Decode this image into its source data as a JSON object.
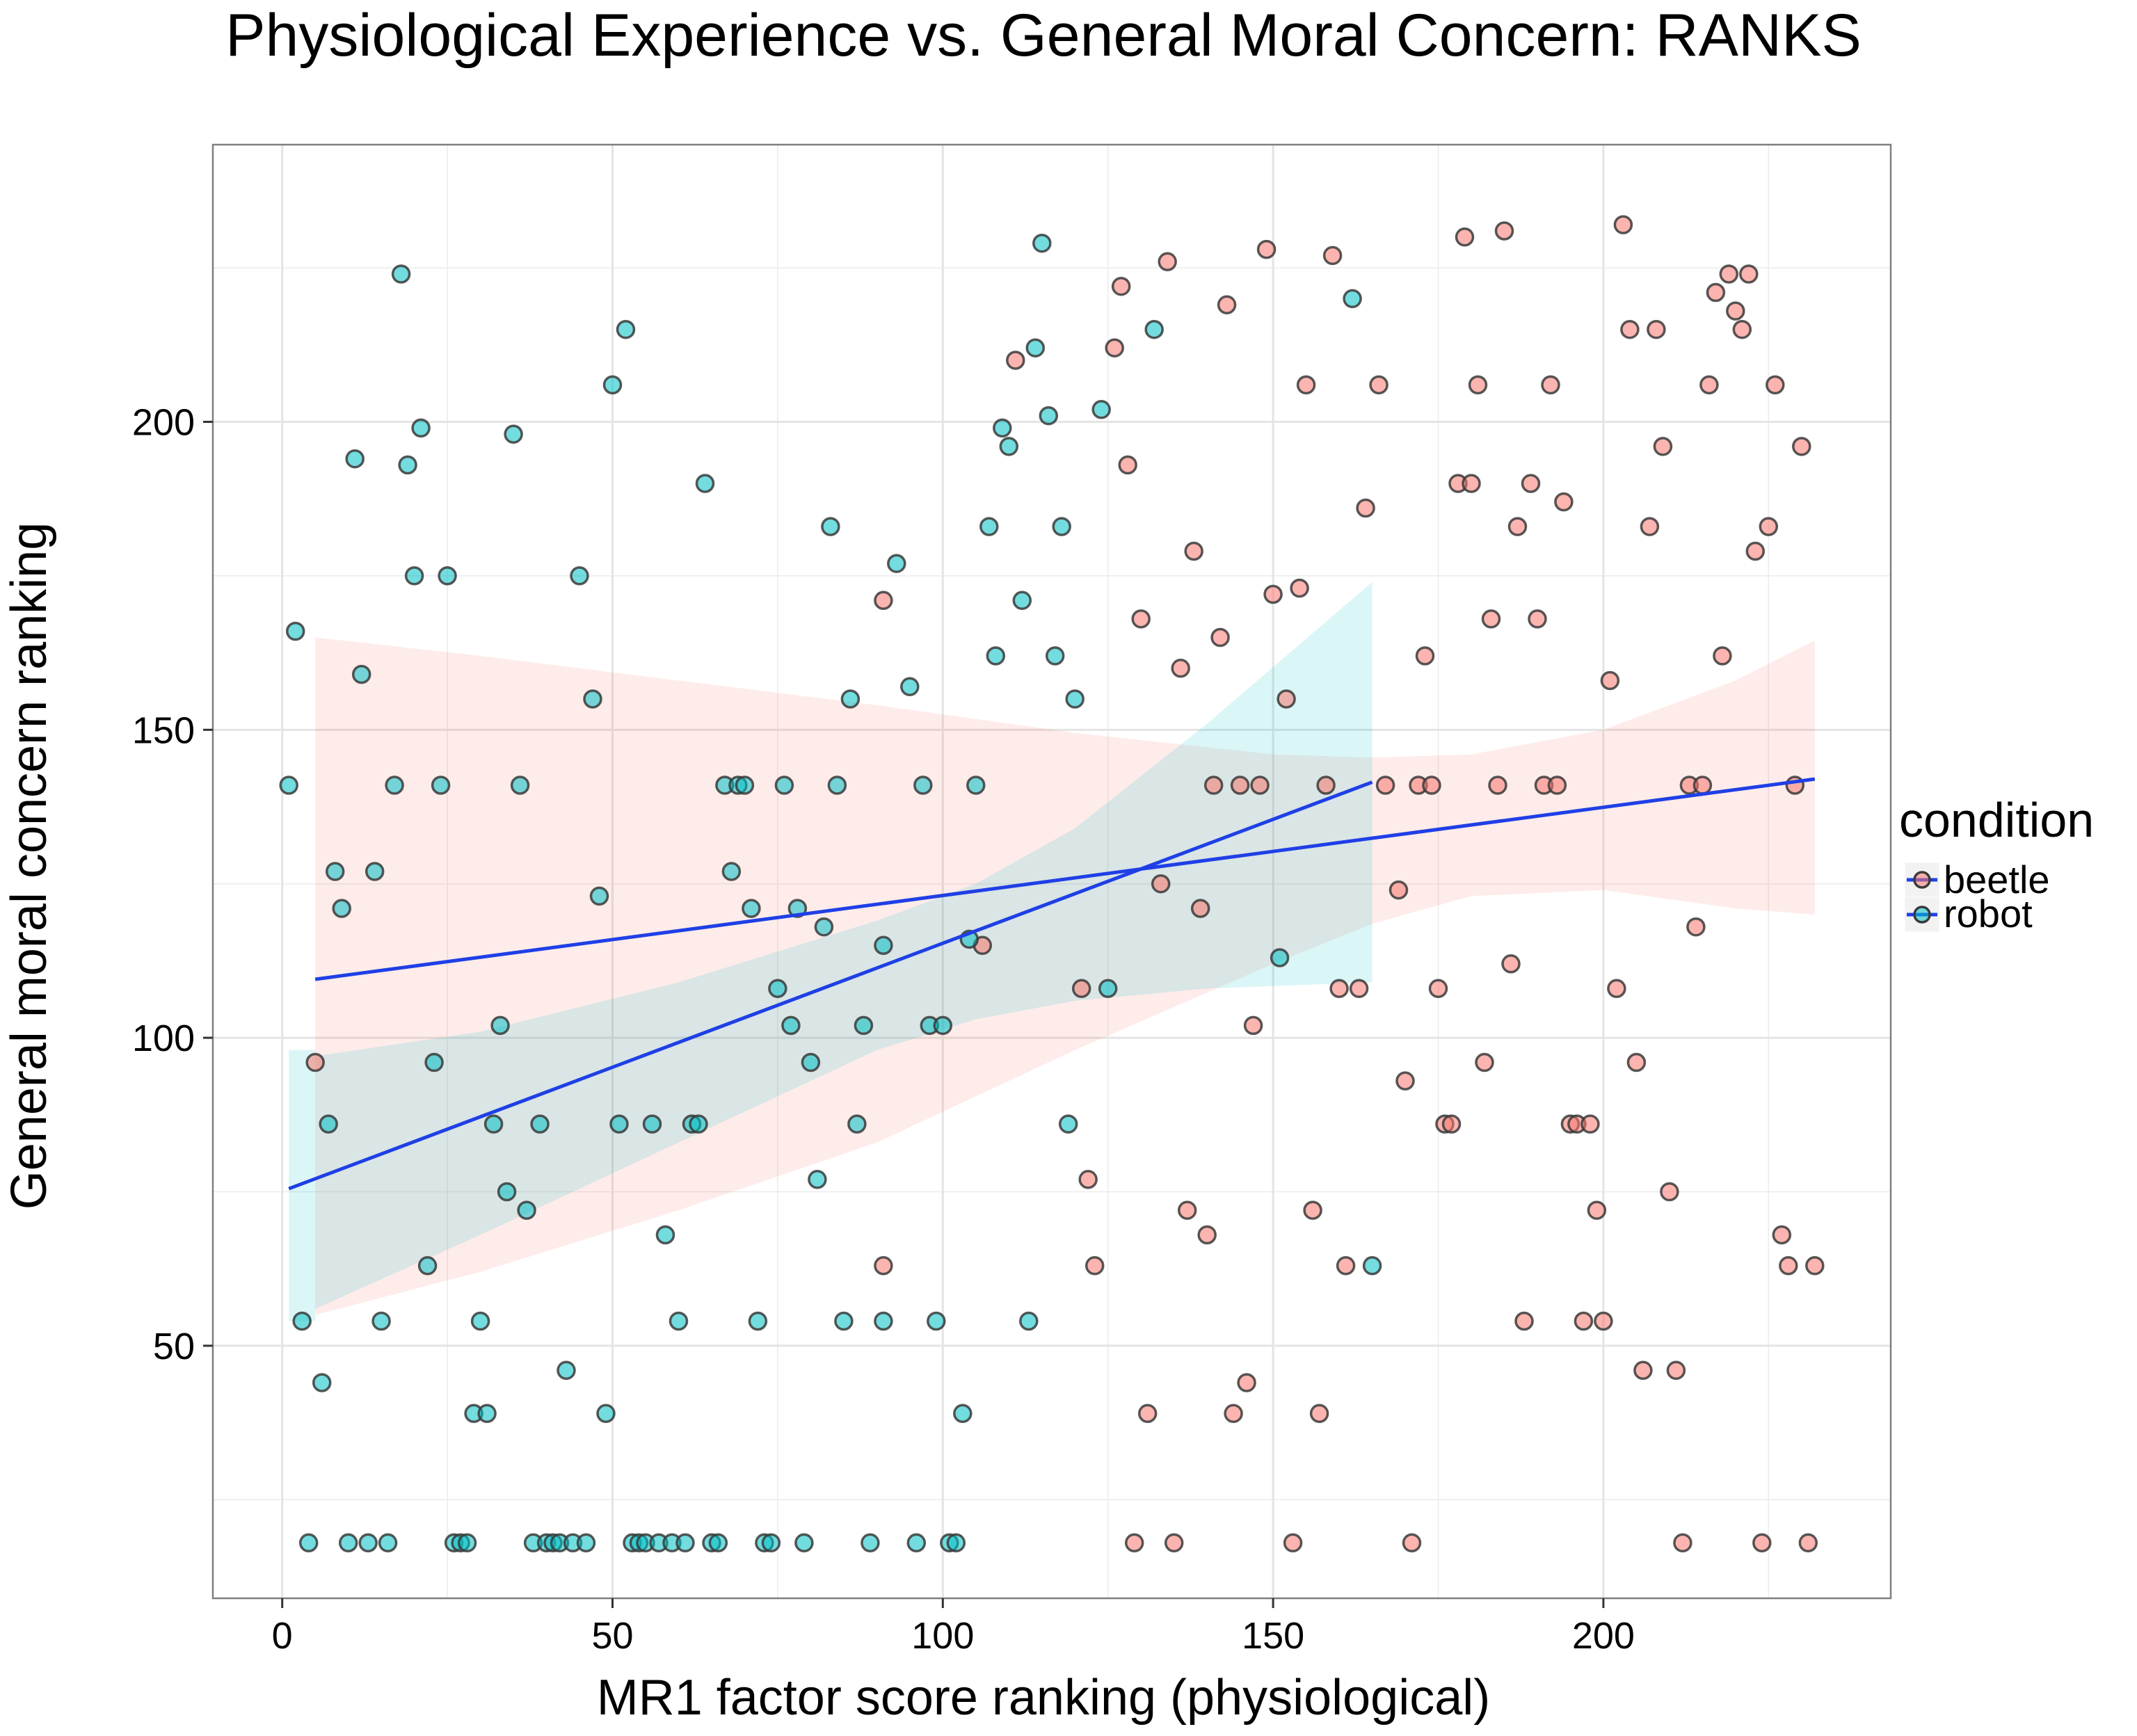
{
  "chart_data": {
    "type": "scatter",
    "title": "Physiological Experience vs. General Moral Concern: RANKS",
    "xlabel": "MR1 factor score ranking (physiological)",
    "ylabel": "General moral concern ranking",
    "xlim": [
      -10.5,
      243.5
    ],
    "ylim": [
      9,
      245
    ],
    "xticks": [
      0,
      50,
      100,
      150,
      200
    ],
    "yticks": [
      50,
      100,
      150,
      200
    ],
    "xtick_labels": [
      "0",
      "50",
      "100",
      "150",
      "200"
    ],
    "ytick_labels": [
      "50",
      "100",
      "150",
      "200"
    ],
    "grid": true,
    "legend": {
      "title": "condition",
      "placement": "right"
    },
    "colors": {
      "beetle": "#F8766D",
      "robot": "#00BFC4",
      "fit": "#1f3fe6",
      "panel_border": "#7f7f7f",
      "grid": "#ebebeb"
    },
    "series": [
      {
        "name": "beetle",
        "fit": {
          "x0": 5,
          "y0": 109.5,
          "x1": 232,
          "y1": 142.0
        },
        "band": {
          "x": [
            5,
            30,
            60,
            90,
            120,
            150,
            165,
            180,
            200,
            220,
            232
          ],
          "upper": [
            165,
            162,
            158,
            154,
            149.5,
            146,
            145.5,
            146,
            150,
            158,
            164.5
          ],
          "lower": [
            55,
            62,
            72,
            83,
            98,
            112,
            118.5,
            123,
            124,
            121,
            120
          ]
        },
        "points": [
          [
            5,
            96
          ],
          [
            91,
            63
          ],
          [
            91,
            171
          ],
          [
            106,
            115
          ],
          [
            111,
            210
          ],
          [
            121,
            108
          ],
          [
            122,
            77
          ],
          [
            123,
            63
          ],
          [
            126,
            212
          ],
          [
            127,
            222
          ],
          [
            128,
            193
          ],
          [
            129,
            18
          ],
          [
            130,
            168
          ],
          [
            131,
            39
          ],
          [
            133,
            125
          ],
          [
            134,
            226
          ],
          [
            135,
            18
          ],
          [
            136,
            160
          ],
          [
            137,
            72
          ],
          [
            138,
            179
          ],
          [
            139,
            121
          ],
          [
            140,
            68
          ],
          [
            141,
            141
          ],
          [
            142,
            165
          ],
          [
            143,
            219
          ],
          [
            144,
            39
          ],
          [
            145,
            141
          ],
          [
            146,
            44
          ],
          [
            147,
            102
          ],
          [
            148,
            141
          ],
          [
            149,
            228
          ],
          [
            150,
            172
          ],
          [
            152,
            155
          ],
          [
            153,
            18
          ],
          [
            154,
            173
          ],
          [
            155,
            206
          ],
          [
            156,
            72
          ],
          [
            157,
            39
          ],
          [
            158,
            141
          ],
          [
            159,
            227
          ],
          [
            160,
            108
          ],
          [
            161,
            63
          ],
          [
            163,
            108
          ],
          [
            164,
            186
          ],
          [
            166,
            206
          ],
          [
            167,
            141
          ],
          [
            169,
            124
          ],
          [
            170,
            93
          ],
          [
            171,
            18
          ],
          [
            172,
            141
          ],
          [
            173,
            162
          ],
          [
            174,
            141
          ],
          [
            175,
            108
          ],
          [
            176,
            86
          ],
          [
            177,
            86
          ],
          [
            178,
            190
          ],
          [
            179,
            230
          ],
          [
            180,
            190
          ],
          [
            181,
            206
          ],
          [
            182,
            96
          ],
          [
            183,
            168
          ],
          [
            184,
            141
          ],
          [
            185,
            231
          ],
          [
            186,
            112
          ],
          [
            187,
            183
          ],
          [
            188,
            54
          ],
          [
            189,
            190
          ],
          [
            190,
            168
          ],
          [
            191,
            141
          ],
          [
            192,
            206
          ],
          [
            193,
            141
          ],
          [
            194,
            187
          ],
          [
            195,
            86
          ],
          [
            196,
            86
          ],
          [
            197,
            54
          ],
          [
            198,
            86
          ],
          [
            199,
            72
          ],
          [
            200,
            54
          ],
          [
            201,
            158
          ],
          [
            202,
            108
          ],
          [
            203,
            232
          ],
          [
            204,
            215
          ],
          [
            205,
            96
          ],
          [
            206,
            46
          ],
          [
            207,
            183
          ],
          [
            208,
            215
          ],
          [
            209,
            196
          ],
          [
            210,
            75
          ],
          [
            211,
            46
          ],
          [
            212,
            18
          ],
          [
            213,
            141
          ],
          [
            214,
            118
          ],
          [
            215,
            141
          ],
          [
            216,
            206
          ],
          [
            217,
            221
          ],
          [
            218,
            162
          ],
          [
            219,
            224
          ],
          [
            220,
            218
          ],
          [
            221,
            215
          ],
          [
            222,
            224
          ],
          [
            223,
            179
          ],
          [
            224,
            18
          ],
          [
            225,
            183
          ],
          [
            226,
            206
          ],
          [
            227,
            68
          ],
          [
            228,
            63
          ],
          [
            229,
            141
          ],
          [
            230,
            196
          ],
          [
            231,
            18
          ],
          [
            232,
            63
          ]
        ]
      },
      {
        "name": "robot",
        "fit": {
          "x0": 1,
          "y0": 75.5,
          "x1": 165,
          "y1": 141.5
        },
        "band": {
          "x": [
            1,
            5,
            5,
            30,
            60,
            90,
            105,
            120,
            140,
            165
          ],
          "upper": [
            98,
            98,
            97,
            101,
            109,
            119,
            125,
            134,
            151,
            174
          ],
          "lower": [
            54,
            54,
            56,
            68,
            83,
            98,
            103,
            106,
            108,
            109
          ]
        },
        "points": [
          [
            1,
            141
          ],
          [
            2,
            166
          ],
          [
            3,
            54
          ],
          [
            4,
            18
          ],
          [
            6,
            44
          ],
          [
            7,
            86
          ],
          [
            8,
            127
          ],
          [
            9,
            121
          ],
          [
            10,
            18
          ],
          [
            11,
            194
          ],
          [
            12,
            159
          ],
          [
            13,
            18
          ],
          [
            14,
            127
          ],
          [
            15,
            54
          ],
          [
            16,
            18
          ],
          [
            17,
            141
          ],
          [
            18,
            224
          ],
          [
            19,
            193
          ],
          [
            20,
            175
          ],
          [
            21,
            199
          ],
          [
            22,
            63
          ],
          [
            23,
            96
          ],
          [
            24,
            141
          ],
          [
            25,
            175
          ],
          [
            26,
            18
          ],
          [
            27,
            18
          ],
          [
            28,
            18
          ],
          [
            29,
            39
          ],
          [
            30,
            54
          ],
          [
            31,
            39
          ],
          [
            32,
            86
          ],
          [
            33,
            102
          ],
          [
            34,
            75
          ],
          [
            35,
            198
          ],
          [
            36,
            141
          ],
          [
            37,
            72
          ],
          [
            38,
            18
          ],
          [
            39,
            86
          ],
          [
            40,
            18
          ],
          [
            41,
            18
          ],
          [
            42,
            18
          ],
          [
            43,
            46
          ],
          [
            44,
            18
          ],
          [
            45,
            175
          ],
          [
            46,
            18
          ],
          [
            47,
            155
          ],
          [
            48,
            123
          ],
          [
            49,
            39
          ],
          [
            50,
            206
          ],
          [
            51,
            86
          ],
          [
            52,
            215
          ],
          [
            53,
            18
          ],
          [
            54,
            18
          ],
          [
            55,
            18
          ],
          [
            56,
            86
          ],
          [
            57,
            18
          ],
          [
            58,
            68
          ],
          [
            59,
            18
          ],
          [
            60,
            54
          ],
          [
            61,
            18
          ],
          [
            62,
            86
          ],
          [
            63,
            86
          ],
          [
            64,
            190
          ],
          [
            65,
            18
          ],
          [
            66,
            18
          ],
          [
            67,
            141
          ],
          [
            68,
            127
          ],
          [
            69,
            141
          ],
          [
            70,
            141
          ],
          [
            71,
            121
          ],
          [
            72,
            54
          ],
          [
            73,
            18
          ],
          [
            74,
            18
          ],
          [
            75,
            108
          ],
          [
            76,
            141
          ],
          [
            77,
            102
          ],
          [
            78,
            121
          ],
          [
            79,
            18
          ],
          [
            80,
            96
          ],
          [
            81,
            77
          ],
          [
            82,
            118
          ],
          [
            83,
            183
          ],
          [
            84,
            141
          ],
          [
            85,
            54
          ],
          [
            86,
            155
          ],
          [
            87,
            86
          ],
          [
            88,
            102
          ],
          [
            89,
            18
          ],
          [
            91,
            115
          ],
          [
            91,
            54
          ],
          [
            93,
            177
          ],
          [
            95,
            157
          ],
          [
            96,
            18
          ],
          [
            97,
            141
          ],
          [
            98,
            102
          ],
          [
            99,
            54
          ],
          [
            100,
            102
          ],
          [
            101,
            18
          ],
          [
            102,
            18
          ],
          [
            103,
            39
          ],
          [
            104,
            116
          ],
          [
            105,
            141
          ],
          [
            107,
            183
          ],
          [
            108,
            162
          ],
          [
            109,
            199
          ],
          [
            110,
            196
          ],
          [
            112,
            171
          ],
          [
            113,
            54
          ],
          [
            114,
            212
          ],
          [
            115,
            229
          ],
          [
            116,
            201
          ],
          [
            117,
            162
          ],
          [
            118,
            183
          ],
          [
            119,
            86
          ],
          [
            120,
            155
          ],
          [
            124,
            202
          ],
          [
            125,
            108
          ],
          [
            132,
            215
          ],
          [
            151,
            113
          ],
          [
            162,
            220
          ],
          [
            165,
            63
          ]
        ]
      }
    ]
  }
}
